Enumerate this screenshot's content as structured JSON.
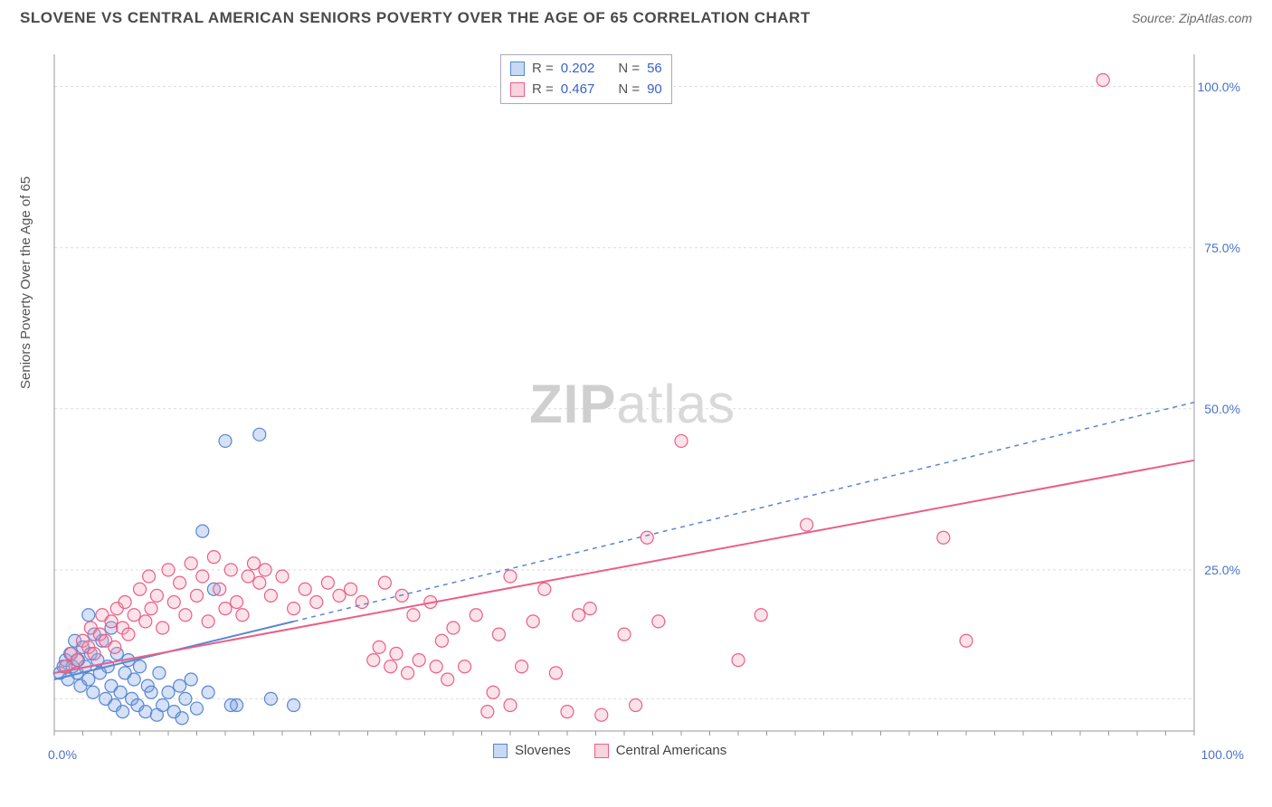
{
  "title": "SLOVENE VS CENTRAL AMERICAN SENIORS POVERTY OVER THE AGE OF 65 CORRELATION CHART",
  "source_label": "Source: ZipAtlas.com",
  "y_axis_label": "Seniors Poverty Over the Age of 65",
  "watermark": {
    "part1": "ZIP",
    "part2": "atlas"
  },
  "chart": {
    "type": "scatter",
    "background_color": "#ffffff",
    "grid_color": "#dcdcdc",
    "axis_color": "#999999",
    "xlim": [
      0,
      100
    ],
    "ylim": [
      0,
      105
    ],
    "xtick_labels": [
      "0.0%",
      "100.0%"
    ],
    "xtick_positions": [
      0,
      100
    ],
    "ytick_labels": [
      "25.0%",
      "50.0%",
      "75.0%",
      "100.0%"
    ],
    "ytick_positions": [
      25,
      50,
      75,
      100
    ],
    "gridlines_y": [
      5,
      25,
      50,
      75,
      100
    ],
    "minor_xticks_step": 2.5,
    "marker_radius": 7,
    "marker_fill_opacity": 0.3,
    "marker_stroke_width": 1.2,
    "trend_stroke_width": 2
  },
  "series": [
    {
      "name": "Slovenes",
      "color": "#6f9ae0",
      "stroke_color": "#5a86d2",
      "R": "0.202",
      "N": "56",
      "trend": {
        "x1": 0,
        "y1": 8,
        "x2": 21,
        "y2": 17,
        "dash": "none"
      },
      "trend_ext": {
        "x1": 21,
        "y1": 17,
        "x2": 100,
        "y2": 51,
        "dash": "5,5"
      },
      "points": [
        [
          0.5,
          9
        ],
        [
          0.8,
          10
        ],
        [
          1,
          11
        ],
        [
          1.2,
          8
        ],
        [
          1.4,
          12
        ],
        [
          1.6,
          10
        ],
        [
          1.8,
          14
        ],
        [
          2,
          9
        ],
        [
          2.1,
          11
        ],
        [
          2.3,
          7
        ],
        [
          2.5,
          13
        ],
        [
          2.7,
          10
        ],
        [
          3,
          18
        ],
        [
          3,
          8
        ],
        [
          3.2,
          12
        ],
        [
          3.4,
          6
        ],
        [
          3.5,
          15
        ],
        [
          3.8,
          11
        ],
        [
          4,
          9
        ],
        [
          4.2,
          14
        ],
        [
          4.5,
          5
        ],
        [
          4.7,
          10
        ],
        [
          5,
          7
        ],
        [
          5,
          16
        ],
        [
          5.3,
          4
        ],
        [
          5.5,
          12
        ],
        [
          5.8,
          6
        ],
        [
          6,
          3
        ],
        [
          6.2,
          9
        ],
        [
          6.5,
          11
        ],
        [
          6.8,
          5
        ],
        [
          7,
          8
        ],
        [
          7.3,
          4
        ],
        [
          7.5,
          10
        ],
        [
          8,
          3
        ],
        [
          8.2,
          7
        ],
        [
          8.5,
          6
        ],
        [
          9,
          2.5
        ],
        [
          9.2,
          9
        ],
        [
          9.5,
          4
        ],
        [
          10,
          6
        ],
        [
          10.5,
          3
        ],
        [
          11,
          7
        ],
        [
          11.2,
          2
        ],
        [
          11.5,
          5
        ],
        [
          12,
          8
        ],
        [
          12.5,
          3.5
        ],
        [
          13,
          31
        ],
        [
          13.5,
          6
        ],
        [
          15,
          45
        ],
        [
          16,
          4
        ],
        [
          18,
          46
        ],
        [
          19,
          5
        ],
        [
          14,
          22
        ],
        [
          15.5,
          4
        ],
        [
          21,
          4
        ]
      ]
    },
    {
      "name": "Central Americans",
      "color": "#f5a3b7",
      "stroke_color": "#ea5f87",
      "R": "0.467",
      "N": "90",
      "trend": {
        "x1": 0,
        "y1": 9,
        "x2": 100,
        "y2": 42,
        "dash": "none"
      },
      "points": [
        [
          1,
          10
        ],
        [
          1.5,
          12
        ],
        [
          2,
          11
        ],
        [
          2.5,
          14
        ],
        [
          3,
          13
        ],
        [
          3.2,
          16
        ],
        [
          3.5,
          12
        ],
        [
          4,
          15
        ],
        [
          4.2,
          18
        ],
        [
          4.5,
          14
        ],
        [
          5,
          17
        ],
        [
          5.3,
          13
        ],
        [
          5.5,
          19
        ],
        [
          6,
          16
        ],
        [
          6.2,
          20
        ],
        [
          6.5,
          15
        ],
        [
          7,
          18
        ],
        [
          7.5,
          22
        ],
        [
          8,
          17
        ],
        [
          8.3,
          24
        ],
        [
          8.5,
          19
        ],
        [
          9,
          21
        ],
        [
          9.5,
          16
        ],
        [
          10,
          25
        ],
        [
          10.5,
          20
        ],
        [
          11,
          23
        ],
        [
          11.5,
          18
        ],
        [
          12,
          26
        ],
        [
          12.5,
          21
        ],
        [
          13,
          24
        ],
        [
          13.5,
          17
        ],
        [
          14,
          27
        ],
        [
          14.5,
          22
        ],
        [
          15,
          19
        ],
        [
          15.5,
          25
        ],
        [
          16,
          20
        ],
        [
          16.5,
          18
        ],
        [
          17,
          24
        ],
        [
          17.5,
          26
        ],
        [
          18,
          23
        ],
        [
          18.5,
          25
        ],
        [
          19,
          21
        ],
        [
          20,
          24
        ],
        [
          21,
          19
        ],
        [
          22,
          22
        ],
        [
          23,
          20
        ],
        [
          24,
          23
        ],
        [
          25,
          21
        ],
        [
          26,
          22
        ],
        [
          27,
          20
        ],
        [
          28,
          11
        ],
        [
          28.5,
          13
        ],
        [
          29,
          23
        ],
        [
          29.5,
          10
        ],
        [
          30,
          12
        ],
        [
          30.5,
          21
        ],
        [
          31,
          9
        ],
        [
          31.5,
          18
        ],
        [
          32,
          11
        ],
        [
          33,
          20
        ],
        [
          33.5,
          10
        ],
        [
          34,
          14
        ],
        [
          34.5,
          8
        ],
        [
          35,
          16
        ],
        [
          36,
          10
        ],
        [
          37,
          18
        ],
        [
          38,
          3
        ],
        [
          38.5,
          6
        ],
        [
          39,
          15
        ],
        [
          40,
          4
        ],
        [
          41,
          10
        ],
        [
          42,
          17
        ],
        [
          44,
          9
        ],
        [
          45,
          3
        ],
        [
          46,
          18
        ],
        [
          48,
          2.5
        ],
        [
          50,
          15
        ],
        [
          51,
          4
        ],
        [
          52,
          30
        ],
        [
          53,
          17
        ],
        [
          55,
          45
        ],
        [
          60,
          11
        ],
        [
          62,
          18
        ],
        [
          66,
          32
        ],
        [
          78,
          30
        ],
        [
          80,
          14
        ],
        [
          92,
          101
        ],
        [
          40,
          24
        ],
        [
          43,
          22
        ],
        [
          47,
          19
        ]
      ]
    }
  ],
  "correlation_box": {
    "rows": [
      {
        "swatch_fill": "#c6d9f5",
        "swatch_border": "#5a86d2",
        "r_label": "R =",
        "r_value": "0.202",
        "n_label": "N =",
        "n_value": "56"
      },
      {
        "swatch_fill": "#f9d3dd",
        "swatch_border": "#ea5f87",
        "r_label": "R =",
        "r_value": "0.467",
        "n_label": "N =",
        "n_value": "90"
      }
    ]
  },
  "bottom_legend": [
    {
      "swatch_fill": "#c6d9f5",
      "swatch_border": "#5a86d2",
      "label": "Slovenes"
    },
    {
      "swatch_fill": "#f9d3dd",
      "swatch_border": "#ea5f87",
      "label": "Central Americans"
    }
  ]
}
